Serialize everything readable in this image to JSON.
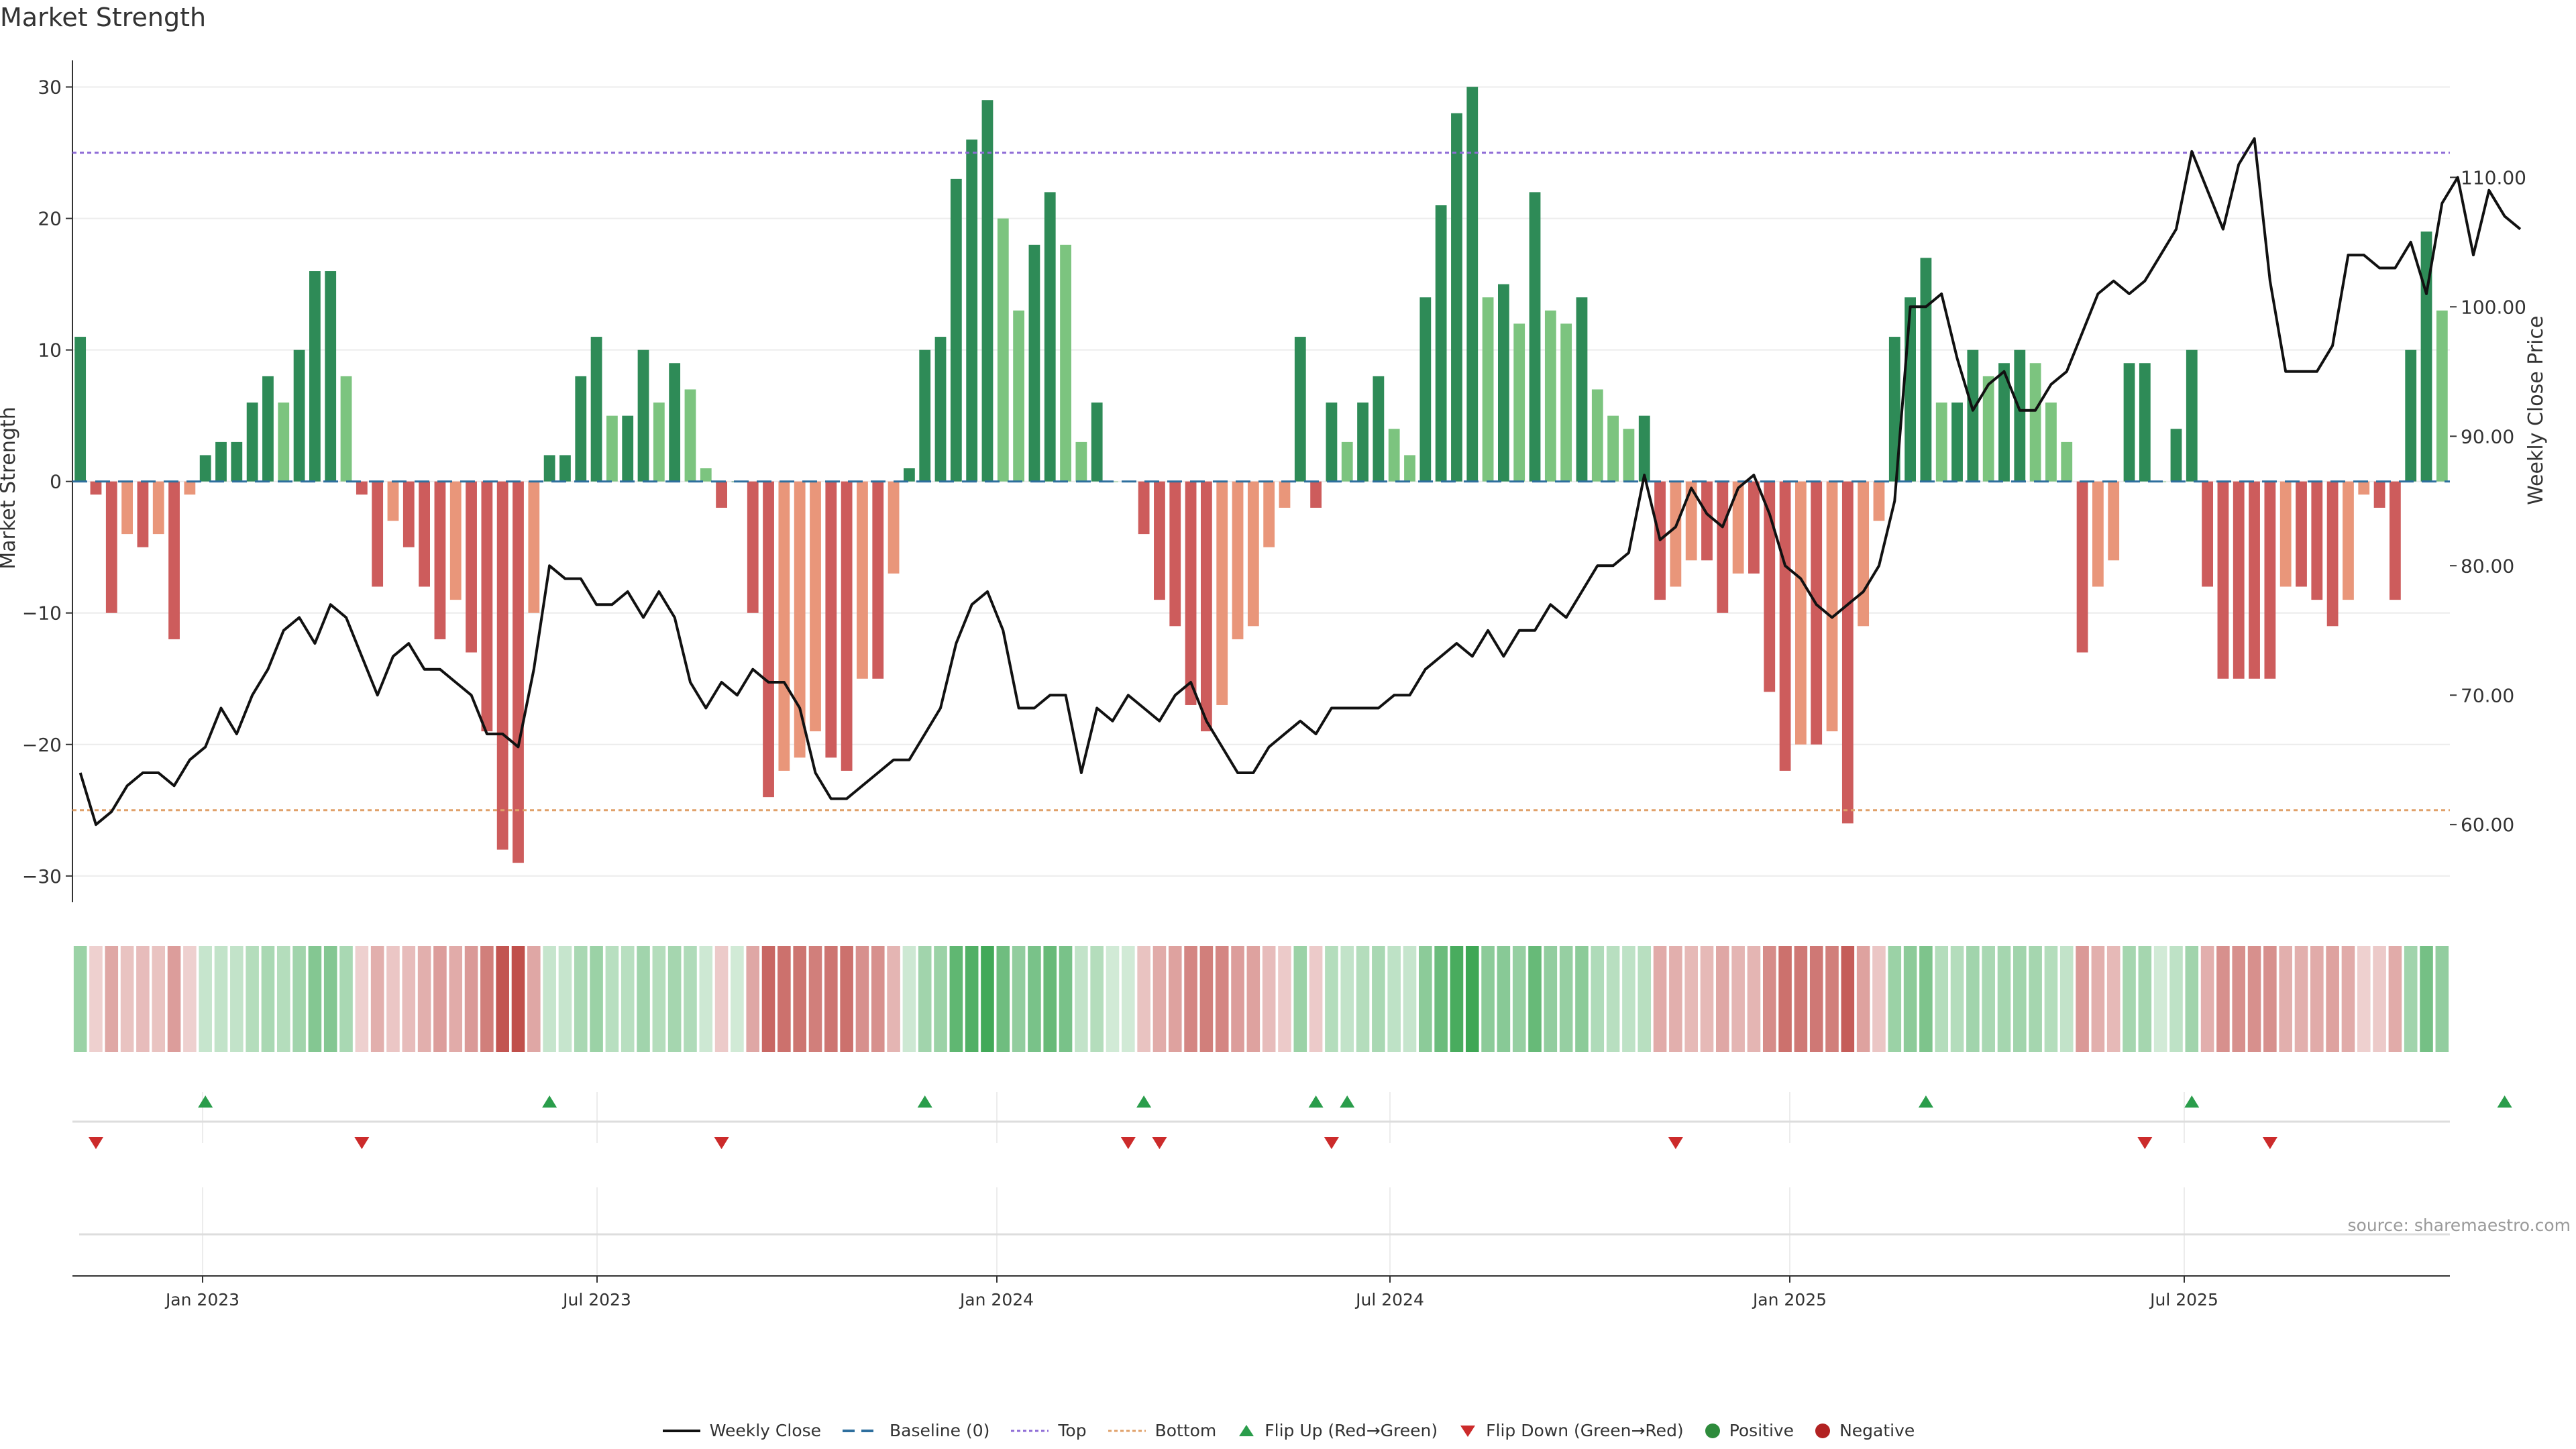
{
  "chart_data": {
    "type": "bar",
    "title": "Market Strength",
    "ylabel_left": "Market Strength",
    "ylabel_right": "Weekly Close Price",
    "ylim_left": [
      -32,
      31
    ],
    "yticks_left": [
      30,
      20,
      10,
      0,
      -10,
      -20,
      -30
    ],
    "ylim_right": [
      54,
      118
    ],
    "yticks_right": [
      "60.00",
      "70.00",
      "80.00",
      "90.00",
      "100.00",
      "110.00"
    ],
    "x_ticks": [
      "Jan 2023",
      "Jul 2023",
      "Jan 2024",
      "Jul 2024",
      "Jan 2025",
      "Jul 2025"
    ],
    "top_line": 25,
    "bottom_line": -25,
    "grid": true,
    "legend_position": "bottom",
    "source": "source: sharemaestro.com",
    "strength": [
      11,
      -1,
      -10,
      -4,
      -5,
      -4,
      -12,
      -1,
      2,
      3,
      3,
      6,
      8,
      6,
      10,
      16,
      16,
      8,
      -1,
      -8,
      -3,
      -5,
      -8,
      -12,
      -9,
      -13,
      -19,
      -28,
      -29,
      -10,
      2,
      2,
      8,
      11,
      5,
      5,
      10,
      6,
      9,
      7,
      1,
      -2,
      0,
      -10,
      -24,
      -22,
      -21,
      -19,
      -21,
      -22,
      -15,
      -15,
      -7,
      1,
      10,
      11,
      23,
      26,
      29,
      20,
      13,
      18,
      22,
      18,
      3,
      6,
      0,
      0,
      -4,
      -9,
      -11,
      -17,
      -19,
      -17,
      -12,
      -11,
      -5,
      -2,
      11,
      -2,
      6,
      3,
      6,
      8,
      4,
      2,
      14,
      21,
      28,
      30,
      14,
      15,
      12,
      22,
      13,
      12,
      14,
      7,
      5,
      4,
      5,
      -9,
      -8,
      -6,
      -6,
      -10,
      -7,
      -7,
      -16,
      -22,
      -20,
      -20,
      -19,
      -26,
      -11,
      -3,
      11,
      14,
      17,
      6,
      6,
      10,
      8,
      9,
      10,
      9,
      6,
      3,
      -13,
      -8,
      -6,
      9,
      9,
      0,
      4,
      10,
      -8,
      -15,
      -15,
      -15,
      -15,
      -8,
      -8,
      -9,
      -11,
      -9,
      -1,
      -2,
      -9,
      10,
      19,
      13
    ],
    "weekly_close": [
      64,
      60,
      61,
      63,
      64,
      64,
      63,
      65,
      66,
      69,
      67,
      70,
      72,
      75,
      76,
      74,
      77,
      76,
      73,
      70,
      73,
      74,
      72,
      72,
      71,
      70,
      67,
      67,
      66,
      72,
      80,
      79,
      79,
      77,
      77,
      78,
      76,
      78,
      76,
      71,
      69,
      71,
      70,
      72,
      71,
      71,
      69,
      64,
      62,
      62,
      63,
      64,
      65,
      65,
      67,
      69,
      74,
      77,
      78,
      75,
      69,
      69,
      70,
      70,
      64,
      69,
      68,
      70,
      69,
      68,
      70,
      71,
      68,
      66,
      64,
      64,
      66,
      67,
      68,
      67,
      69,
      69,
      69,
      69,
      70,
      70,
      72,
      73,
      74,
      73,
      75,
      73,
      75,
      75,
      77,
      76,
      78,
      80,
      80,
      81,
      87,
      82,
      83,
      86,
      84,
      83,
      86,
      87,
      84,
      80,
      79,
      77,
      76,
      77,
      78,
      80,
      85,
      100,
      100,
      101,
      96,
      92,
      94,
      95,
      92,
      92,
      94,
      95,
      98,
      101,
      102,
      101,
      102,
      104,
      106,
      112,
      109,
      106,
      111,
      113,
      102,
      95,
      95,
      95,
      97,
      104,
      104,
      103,
      103,
      105,
      101,
      108,
      110,
      104,
      109,
      107,
      106
    ],
    "flip_up_index": [
      8,
      30,
      54,
      68,
      79,
      81,
      118,
      135,
      155
    ],
    "flip_down_index": [
      1,
      18,
      41,
      67,
      69,
      80,
      102,
      132,
      140
    ],
    "legend": [
      {
        "label": "Weekly Close",
        "symbol": "solid-line",
        "color": "#111111"
      },
      {
        "label": "Baseline (0)",
        "symbol": "dashed-line",
        "color": "#2e6f9e"
      },
      {
        "label": "Top",
        "symbol": "dotted-line",
        "color": "#8e6bd6"
      },
      {
        "label": "Bottom",
        "symbol": "dotted-line",
        "color": "#e0a16a"
      },
      {
        "label": "Flip Up (Red→Green)",
        "symbol": "triangle-up",
        "color": "#2a9d4b"
      },
      {
        "label": "Flip Down (Green→Red)",
        "symbol": "triangle-down",
        "color": "#cc2b2b"
      },
      {
        "label": "Positive",
        "symbol": "circle",
        "color": "#2e8b3c"
      },
      {
        "label": "Negative",
        "symbol": "circle",
        "color": "#b22222"
      }
    ]
  },
  "colors": {
    "pos_strong": "#2e8b57",
    "pos_weak": "#7cc47f",
    "neg_strong": "#cd5c5c",
    "neg_weak": "#e9967a",
    "price_line": "#111111",
    "top_line": "#8e6bd6",
    "bottom_line": "#e0a16a",
    "baseline": "#2e6f9e",
    "grid": "#ececec"
  }
}
